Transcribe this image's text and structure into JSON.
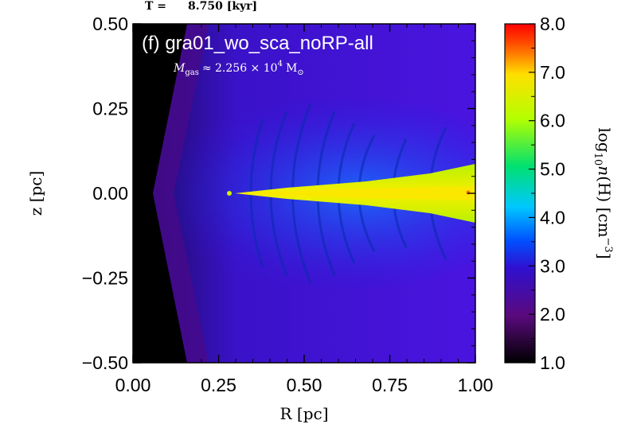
{
  "chart_data": {
    "type": "heatmap",
    "time_label": "T =",
    "time_value": "8.750 [kyr]",
    "panel_label": "(f) gra01_wo_sca_noRP-all",
    "mass_annotation": {
      "symbol": "M",
      "subscript": "gas",
      "approx": "≈ 2.256 × 10",
      "exponent": "4",
      "unit": "M",
      "unit_sub": "⊙"
    },
    "xlabel": "R [pc]",
    "ylabel": "z [pc]",
    "xlim": [
      0.0,
      1.0
    ],
    "ylim": [
      -0.5,
      0.5
    ],
    "xticks": [
      "0.00",
      "0.25",
      "0.50",
      "0.75",
      "1.00"
    ],
    "yticks": [
      "0.50",
      "0.25",
      "0.00",
      "−0.25",
      "−0.50"
    ],
    "colorbar": {
      "label_prefix": "log",
      "label_sub": "10",
      "label_var": "n",
      "label_rest": "(H) [cm",
      "label_exp": "−3",
      "label_end": "]",
      "range": [
        1.0,
        8.0
      ],
      "ticks": [
        "8.0",
        "7.0",
        "6.0",
        "5.0",
        "4.0",
        "3.0",
        "2.0",
        "1.0"
      ],
      "colors": {
        "c1": "#000000",
        "c2": "#5a0a7e",
        "c3": "#3010d0",
        "c4": "#0050ff",
        "c5": "#00c8ff",
        "c6": "#00e070",
        "c7": "#b4ff00",
        "c8": "#ffe000",
        "c9": "#ff5000",
        "c10": "#ff0000"
      }
    },
    "field": {
      "background": "#4a10d8",
      "void_color": "#000000",
      "disk_color": "#c8f000",
      "disk_core_color": "#ffe000",
      "envelope_color": "#1060ff"
    },
    "grid": false
  }
}
